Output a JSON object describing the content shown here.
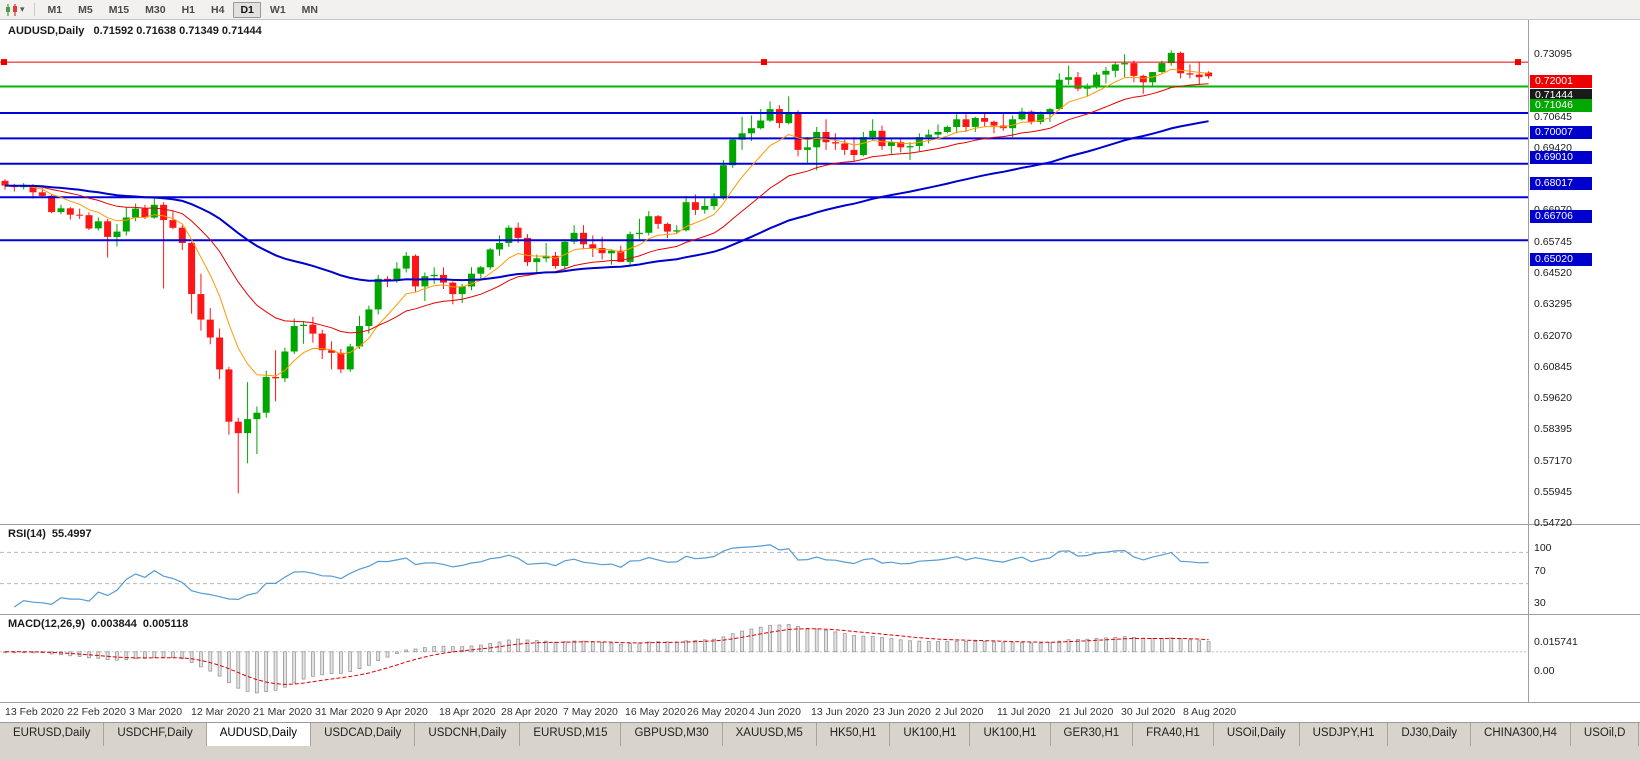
{
  "toolbar": {
    "chart_type_icon": "candlestick-chart",
    "timeframes": [
      "M1",
      "M5",
      "M15",
      "M30",
      "H1",
      "H4",
      "D1",
      "W1",
      "MN"
    ],
    "active": "D1"
  },
  "chart": {
    "title_symbol": "AUDUSD,Daily",
    "title_ohlc": "0.71592 0.71638 0.71349 0.71444",
    "price_axis_ticks": [
      "0.73095",
      "0.70645",
      "0.69420",
      "0.66970",
      "0.65745",
      "0.64520",
      "0.63295",
      "0.62070",
      "0.60845",
      "0.59620",
      "0.58395",
      "0.57170",
      "0.55945",
      "0.54720"
    ],
    "price_badges": [
      {
        "label": "0.72001",
        "value": 0.72001,
        "color": "#ee0000"
      },
      {
        "label": "0.71444",
        "value": 0.71444,
        "color": "#1a1a1a"
      },
      {
        "label": "0.71046",
        "value": 0.71046,
        "color": "#00a800"
      },
      {
        "label": "0.70007",
        "value": 0.70007,
        "color": "#0000cc"
      },
      {
        "label": "0.69010",
        "value": 0.6901,
        "color": "#0000cc"
      },
      {
        "label": "0.68017",
        "value": 0.68017,
        "color": "#0000cc"
      },
      {
        "label": "0.66706",
        "value": 0.66706,
        "color": "#0000cc"
      },
      {
        "label": "0.65020",
        "value": 0.6502,
        "color": "#0000cc"
      }
    ],
    "hlines": [
      {
        "value": 0.72001,
        "color": "#ee0000",
        "width": 1,
        "handles": true
      },
      {
        "value": 0.71046,
        "color": "#00b400",
        "width": 2,
        "handles": false
      },
      {
        "value": 0.70007,
        "color": "#0000dd",
        "width": 2,
        "handles": false
      },
      {
        "value": 0.6901,
        "color": "#0000dd",
        "width": 2,
        "handles": false
      },
      {
        "value": 0.68017,
        "color": "#0000dd",
        "width": 2,
        "handles": false
      },
      {
        "value": 0.66706,
        "color": "#0000dd",
        "width": 2,
        "handles": false
      },
      {
        "value": 0.6502,
        "color": "#0000dd",
        "width": 2,
        "handles": false
      }
    ],
    "candle_up_color": "#00a600",
    "candle_down_color": "#fe1616",
    "ma_lines": [
      {
        "name": "fast",
        "period": 8,
        "color": "#ff9a00",
        "width": 1
      },
      {
        "name": "medium",
        "period": 21,
        "color": "#e80000",
        "width": 1
      },
      {
        "name": "slow",
        "period": 55,
        "color": "#0000cc",
        "width": 2
      }
    ]
  },
  "chart_data": {
    "type": "candlestick",
    "symbol": "AUDUSD",
    "timeframe": "Daily",
    "current": {
      "open": 0.71592,
      "high": 0.71638,
      "low": 0.71349,
      "close": 0.71444
    },
    "axis_range": {
      "max": 0.7365,
      "min": 0.539
    },
    "candles": [
      [
        0.6735,
        0.6741,
        0.67,
        0.6716
      ],
      [
        0.6716,
        0.6723,
        0.6693,
        0.671
      ],
      [
        0.671,
        0.6726,
        0.6701,
        0.6717
      ],
      [
        0.6717,
        0.6722,
        0.6665,
        0.669
      ],
      [
        0.669,
        0.6706,
        0.667,
        0.6676
      ],
      [
        0.6676,
        0.6681,
        0.6608,
        0.6612
      ],
      [
        0.6612,
        0.6641,
        0.6604,
        0.6627
      ],
      [
        0.6627,
        0.6632,
        0.6583,
        0.6602
      ],
      [
        0.6602,
        0.6626,
        0.6585,
        0.66
      ],
      [
        0.66,
        0.6611,
        0.6542,
        0.6548
      ],
      [
        0.6548,
        0.6591,
        0.654,
        0.6576
      ],
      [
        0.6576,
        0.6585,
        0.6434,
        0.6515
      ],
      [
        0.6515,
        0.6566,
        0.6478,
        0.6536
      ],
      [
        0.6536,
        0.6631,
        0.652,
        0.6591
      ],
      [
        0.6591,
        0.6646,
        0.6576,
        0.6626
      ],
      [
        0.6626,
        0.664,
        0.6585,
        0.6591
      ],
      [
        0.6591,
        0.6666,
        0.6586,
        0.6641
      ],
      [
        0.6641,
        0.6651,
        0.6313,
        0.6581
      ],
      [
        0.6581,
        0.6616,
        0.6545,
        0.6551
      ],
      [
        0.6551,
        0.6561,
        0.6464,
        0.6491
      ],
      [
        0.6491,
        0.6496,
        0.6214,
        0.6291
      ],
      [
        0.6291,
        0.6371,
        0.6148,
        0.6191
      ],
      [
        0.6191,
        0.6236,
        0.6094,
        0.6121
      ],
      [
        0.6121,
        0.6156,
        0.5958,
        0.5996
      ],
      [
        0.5996,
        0.6006,
        0.574,
        0.5791
      ],
      [
        0.5791,
        0.5806,
        0.551,
        0.5746
      ],
      [
        0.5746,
        0.5946,
        0.5628,
        0.5801
      ],
      [
        0.5801,
        0.5851,
        0.5664,
        0.5826
      ],
      [
        0.5826,
        0.5991,
        0.5806,
        0.5966
      ],
      [
        0.5966,
        0.6071,
        0.5871,
        0.5961
      ],
      [
        0.5961,
        0.6081,
        0.5946,
        0.6066
      ],
      [
        0.6066,
        0.6196,
        0.6056,
        0.6166
      ],
      [
        0.6166,
        0.6186,
        0.6096,
        0.6171
      ],
      [
        0.6171,
        0.6201,
        0.6101,
        0.6136
      ],
      [
        0.6136,
        0.6151,
        0.6036,
        0.6071
      ],
      [
        0.6071,
        0.6106,
        0.5996,
        0.6061
      ],
      [
        0.6061,
        0.6076,
        0.5981,
        0.5996
      ],
      [
        0.5996,
        0.6096,
        0.5986,
        0.6086
      ],
      [
        0.6086,
        0.6206,
        0.6076,
        0.6166
      ],
      [
        0.6166,
        0.6246,
        0.6136,
        0.6231
      ],
      [
        0.6231,
        0.6366,
        0.6211,
        0.6351
      ],
      [
        0.6351,
        0.6361,
        0.6318,
        0.6346
      ],
      [
        0.6346,
        0.6416,
        0.6336,
        0.6391
      ],
      [
        0.6391,
        0.6456,
        0.6376,
        0.6441
      ],
      [
        0.6441,
        0.6446,
        0.6301,
        0.6321
      ],
      [
        0.6321,
        0.6376,
        0.6264,
        0.6361
      ],
      [
        0.6361,
        0.6396,
        0.6331,
        0.6366
      ],
      [
        0.6366,
        0.6396,
        0.6311,
        0.6336
      ],
      [
        0.6336,
        0.6341,
        0.6251,
        0.6291
      ],
      [
        0.6291,
        0.6331,
        0.6256,
        0.6321
      ],
      [
        0.6321,
        0.6396,
        0.6306,
        0.6371
      ],
      [
        0.6371,
        0.6401,
        0.6351,
        0.6396
      ],
      [
        0.6396,
        0.6471,
        0.6386,
        0.6466
      ],
      [
        0.6466,
        0.6521,
        0.6441,
        0.6491
      ],
      [
        0.6491,
        0.6561,
        0.6476,
        0.6551
      ],
      [
        0.6551,
        0.6571,
        0.6491,
        0.6511
      ],
      [
        0.6511,
        0.6526,
        0.6401,
        0.6416
      ],
      [
        0.6416,
        0.6446,
        0.6376,
        0.6431
      ],
      [
        0.6431,
        0.6491,
        0.6416,
        0.6441
      ],
      [
        0.6441,
        0.6456,
        0.6391,
        0.6401
      ],
      [
        0.6401,
        0.6506,
        0.6386,
        0.6496
      ],
      [
        0.6496,
        0.6561,
        0.6486,
        0.6531
      ],
      [
        0.6531,
        0.6561,
        0.6466,
        0.6486
      ],
      [
        0.6486,
        0.6521,
        0.6436,
        0.6471
      ],
      [
        0.6471,
        0.6516,
        0.6426,
        0.6451
      ],
      [
        0.6451,
        0.6466,
        0.6406,
        0.6461
      ],
      [
        0.6461,
        0.6481,
        0.6416,
        0.6417
      ],
      [
        0.6417,
        0.6536,
        0.6406,
        0.6526
      ],
      [
        0.6526,
        0.6586,
        0.6506,
        0.6531
      ],
      [
        0.6531,
        0.6616,
        0.6521,
        0.6596
      ],
      [
        0.6596,
        0.6601,
        0.6546,
        0.6566
      ],
      [
        0.6566,
        0.6571,
        0.6511,
        0.6536
      ],
      [
        0.6536,
        0.6561,
        0.6526,
        0.6541
      ],
      [
        0.6541,
        0.6676,
        0.6536,
        0.6651
      ],
      [
        0.6651,
        0.6681,
        0.6601,
        0.6621
      ],
      [
        0.6621,
        0.6666,
        0.6606,
        0.6636
      ],
      [
        0.6636,
        0.6686,
        0.6621,
        0.6666
      ],
      [
        0.6666,
        0.6816,
        0.6661,
        0.6796
      ],
      [
        0.6796,
        0.6901,
        0.6786,
        0.6896
      ],
      [
        0.6896,
        0.6986,
        0.6856,
        0.6921
      ],
      [
        0.6921,
        0.6991,
        0.6891,
        0.6941
      ],
      [
        0.6941,
        0.7016,
        0.6936,
        0.6971
      ],
      [
        0.6971,
        0.7046,
        0.6966,
        0.7016
      ],
      [
        0.7016,
        0.7031,
        0.6941,
        0.6961
      ],
      [
        0.6961,
        0.7066,
        0.6956,
        0.7001
      ],
      [
        0.7001,
        0.7011,
        0.6831,
        0.6856
      ],
      [
        0.6856,
        0.6906,
        0.6801,
        0.6866
      ],
      [
        0.6866,
        0.6946,
        0.6776,
        0.6926
      ],
      [
        0.6926,
        0.6976,
        0.6856,
        0.6886
      ],
      [
        0.6886,
        0.6921,
        0.6856,
        0.6881
      ],
      [
        0.6881,
        0.6896,
        0.6836,
        0.6856
      ],
      [
        0.6856,
        0.6906,
        0.6811,
        0.6836
      ],
      [
        0.6836,
        0.6926,
        0.6831,
        0.6906
      ],
      [
        0.6906,
        0.6976,
        0.6891,
        0.6931
      ],
      [
        0.6931,
        0.6951,
        0.6856,
        0.6871
      ],
      [
        0.6871,
        0.6901,
        0.6841,
        0.6886
      ],
      [
        0.6886,
        0.6901,
        0.6846,
        0.6866
      ],
      [
        0.6866,
        0.6886,
        0.6816,
        0.6871
      ],
      [
        0.6871,
        0.6921,
        0.6851,
        0.6906
      ],
      [
        0.6906,
        0.6936,
        0.6881,
        0.6916
      ],
      [
        0.6916,
        0.6956,
        0.6901,
        0.6926
      ],
      [
        0.6926,
        0.6951,
        0.6921,
        0.6946
      ],
      [
        0.6946,
        0.6996,
        0.6921,
        0.6976
      ],
      [
        0.6976,
        0.6996,
        0.6926,
        0.6946
      ],
      [
        0.6946,
        0.6986,
        0.6926,
        0.6981
      ],
      [
        0.6981,
        0.7001,
        0.6946,
        0.6966
      ],
      [
        0.6966,
        0.6971,
        0.6921,
        0.6951
      ],
      [
        0.6951,
        0.7001,
        0.6931,
        0.6941
      ],
      [
        0.6941,
        0.6991,
        0.6906,
        0.6976
      ],
      [
        0.6976,
        0.7021,
        0.6971,
        0.7006
      ],
      [
        0.7006,
        0.7011,
        0.6956,
        0.6966
      ],
      [
        0.6966,
        0.7006,
        0.6956,
        0.6996
      ],
      [
        0.6996,
        0.7021,
        0.6966,
        0.7016
      ],
      [
        0.7016,
        0.7156,
        0.7011,
        0.7131
      ],
      [
        0.7131,
        0.7186,
        0.7111,
        0.7141
      ],
      [
        0.7141,
        0.7161,
        0.7086,
        0.7096
      ],
      [
        0.7096,
        0.7116,
        0.7066,
        0.7106
      ],
      [
        0.7106,
        0.7161,
        0.7096,
        0.7151
      ],
      [
        0.7151,
        0.7181,
        0.7116,
        0.7166
      ],
      [
        0.7166,
        0.7201,
        0.7141,
        0.7191
      ],
      [
        0.7191,
        0.7231,
        0.7141,
        0.7196
      ],
      [
        0.7196,
        0.7206,
        0.7121,
        0.7146
      ],
      [
        0.7146,
        0.7151,
        0.7076,
        0.7121
      ],
      [
        0.7121,
        0.7161,
        0.7101,
        0.7161
      ],
      [
        0.7161,
        0.7206,
        0.7156,
        0.7196
      ],
      [
        0.7196,
        0.7246,
        0.7186,
        0.7236
      ],
      [
        0.7236,
        0.7241,
        0.7136,
        0.7156
      ],
      [
        0.7156,
        0.7191,
        0.7136,
        0.7151
      ],
      [
        0.7151,
        0.7201,
        0.7111,
        0.7141
      ],
      [
        0.71592,
        0.71638,
        0.71349,
        0.71444
      ]
    ]
  },
  "rsi": {
    "title": "RSI(14)",
    "value": "55.4997",
    "period": 14,
    "line_color": "#569bd4",
    "levels": [
      {
        "label": "100",
        "value": 100,
        "dashed": false
      },
      {
        "label": "70",
        "value": 70,
        "dashed": true
      },
      {
        "label": "30",
        "value": 30,
        "dashed": true
      }
    ]
  },
  "macd": {
    "title": "MACD(12,26,9)",
    "value_main": "0.003844",
    "value_signal": "0.005118",
    "fast": 12,
    "slow": 26,
    "signal": 9,
    "hist_color": "#e2e2e2",
    "hist_border": "#8f8f8f",
    "signal_color": "#e00000",
    "axis_labels": [
      {
        "label": "0.015741",
        "value": 0.015741
      },
      {
        "label": "0.00",
        "value": 0
      }
    ]
  },
  "date_axis": [
    "13 Feb 2020",
    "22 Feb 2020",
    "3 Mar 2020",
    "12 Mar 2020",
    "21 Mar 2020",
    "31 Mar 2020",
    "9 Apr 2020",
    "18 Apr 2020",
    "28 Apr 2020",
    "7 May 2020",
    "16 May 2020",
    "26 May 2020",
    "4 Jun 2020",
    "13 Jun 2020",
    "23 Jun 2020",
    "2 Jul 2020",
    "11 Jul 2020",
    "21 Jul 2020",
    "30 Jul 2020",
    "8 Aug 2020"
  ],
  "tabs": {
    "active_index": 2,
    "items": [
      "EURUSD,Daily",
      "USDCHF,Daily",
      "AUDUSD,Daily",
      "USDCAD,Daily",
      "USDCNH,Daily",
      "EURUSD,M15",
      "GBPUSD,M30",
      "XAUUSD,M5",
      "HK50,H1",
      "UK100,H1",
      "UK100,H1",
      "GER30,H1",
      "FRA40,H1",
      "USOil,Daily",
      "USDJPY,H1",
      "DJ30,Daily",
      "CHINA300,H4",
      "USOil,D"
    ]
  }
}
